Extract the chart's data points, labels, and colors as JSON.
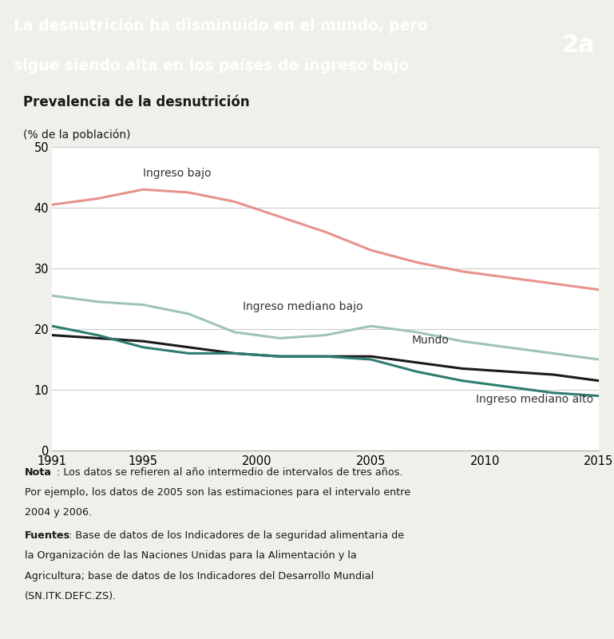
{
  "title_line1": "La desnutrición ha disminuido en el mundo, pero",
  "title_line2": "sigue siendo alta en los países de ingreso bajo",
  "title_bg_color": "#2d2d2d",
  "title_text_color": "#ffffff",
  "badge_text": "2a",
  "badge_bg_color": "#666666",
  "subtitle1": "Prevalencia de la desnutrición",
  "subtitle2": "(% de la población)",
  "xlim": [
    1991,
    2015
  ],
  "ylim": [
    0,
    50
  ],
  "yticks": [
    0,
    10,
    20,
    30,
    40,
    50
  ],
  "xticks": [
    1991,
    1995,
    2000,
    2005,
    2010,
    2015
  ],
  "years": [
    1991,
    1993,
    1995,
    1997,
    1999,
    2001,
    2003,
    2005,
    2007,
    2009,
    2011,
    2013,
    2015
  ],
  "ingreso_bajo": [
    40.5,
    41.5,
    43.0,
    42.5,
    41.0,
    38.5,
    36.0,
    33.0,
    31.0,
    29.5,
    28.5,
    27.5,
    26.5
  ],
  "ingreso_mediano_bajo": [
    25.5,
    24.5,
    24.0,
    22.5,
    19.5,
    18.5,
    19.0,
    20.5,
    19.5,
    18.0,
    17.0,
    16.0,
    15.0
  ],
  "mundo": [
    19.0,
    18.5,
    18.0,
    17.0,
    16.0,
    15.5,
    15.5,
    15.5,
    14.5,
    13.5,
    13.0,
    12.5,
    11.5
  ],
  "ingreso_mediano_alto": [
    20.5,
    19.0,
    17.0,
    16.0,
    16.0,
    15.5,
    15.5,
    15.0,
    13.0,
    11.5,
    10.5,
    9.5,
    9.0
  ],
  "color_ingreso_bajo": "#e8928c",
  "color_ingreso_mediano_bajo": "#9fc4b4",
  "color_mundo": "#1a1a1a",
  "color_ingreso_mediano_alto": "#2e7d6e",
  "label_ingreso_bajo": "Ingreso bajo",
  "label_ingreso_mediano_bajo": "Ingreso mediano bajo",
  "label_mundo": "Mundo",
  "label_ingreso_mediano_alto": "Ingreso mediano alto",
  "nota_bold": "Nota",
  "nota_text": ": Los datos se refieren al año intermedio de intervalos de tres años.\nPor ejemplo, los datos de 2005 son las estimaciones para el intervalo entre\n2004 y 2006.",
  "fuentes_bold": "Fuentes",
  "fuentes_text": ": Base de datos de los Indicadores de la seguridad alimentaria de\nla Organización de las Naciones Unidas para la Alimentación y la\nAgricultura; base de datos de los Indicadores del Desarrollo Mundial\n(SN.ITK.DEFC.ZS).",
  "bg_color": "#f0efea",
  "plot_bg_color": "#ffffff",
  "grid_color": "#cccccc",
  "line_width": 2.2
}
